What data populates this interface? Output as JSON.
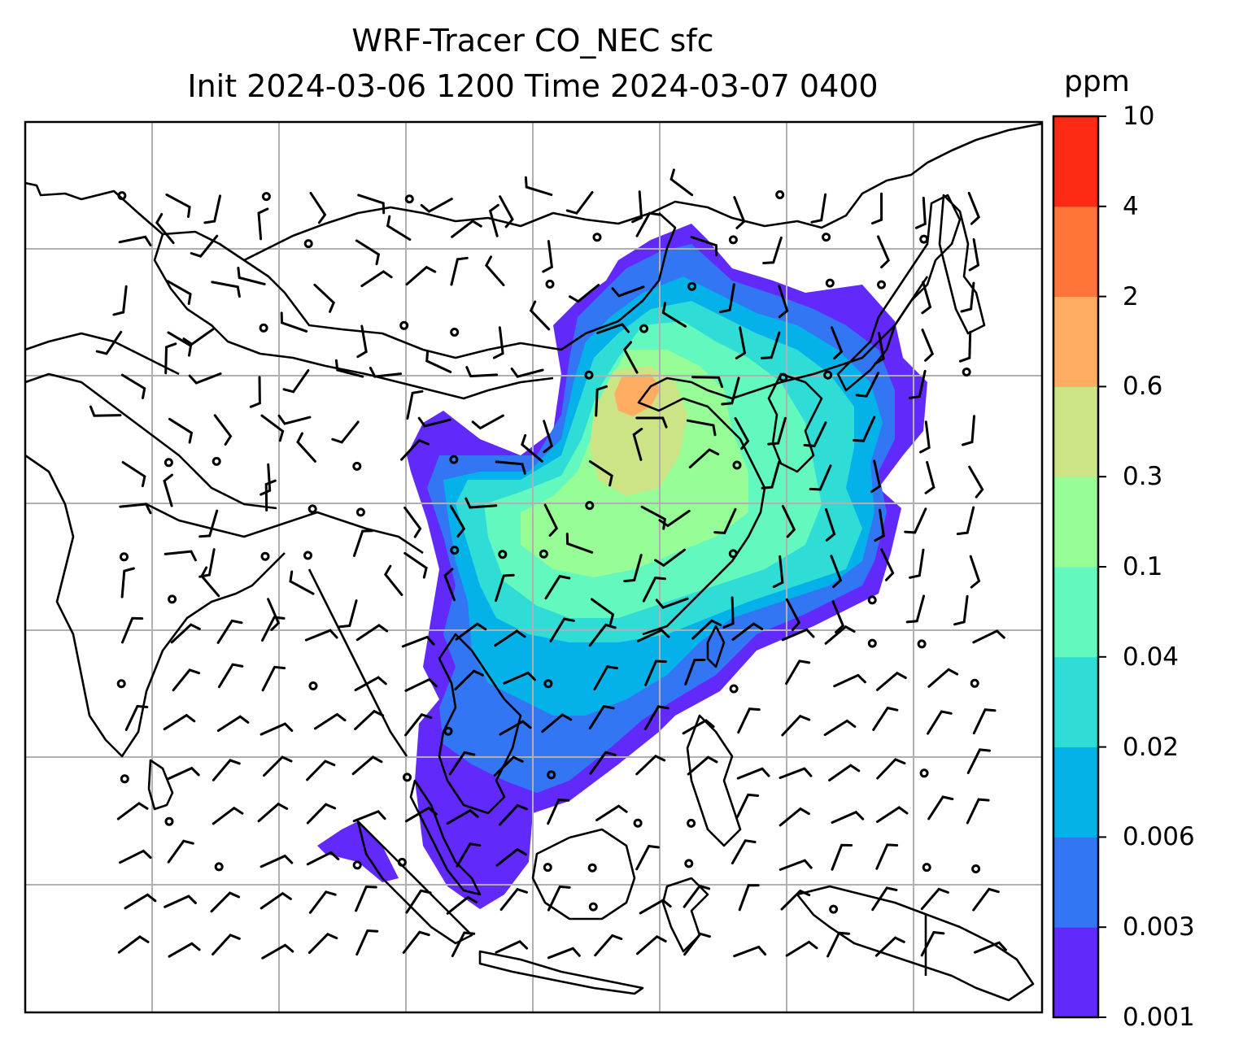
{
  "title_line1": "WRF-Tracer CO_NEC sfc",
  "title_line2": "Init 2024-03-06 1200 Time 2024-03-07 0400",
  "colorbar": {
    "unit_label": "ppm",
    "ticks": [
      "0.001",
      "0.003",
      "0.006",
      "0.02",
      "0.04",
      "0.1",
      "0.3",
      "0.6",
      "2",
      "4",
      "10"
    ],
    "colors": [
      "#6229fb",
      "#3276f4",
      "#05b1e9",
      "#2fdcd6",
      "#63f8bd",
      "#96fd97",
      "#cce486",
      "#fead62",
      "#ff7539",
      "#ff2a14"
    ]
  },
  "map": {
    "field": "CO_NEC tracer concentration, surface",
    "overlay": "wind barbs",
    "gridlines": "on"
  }
}
